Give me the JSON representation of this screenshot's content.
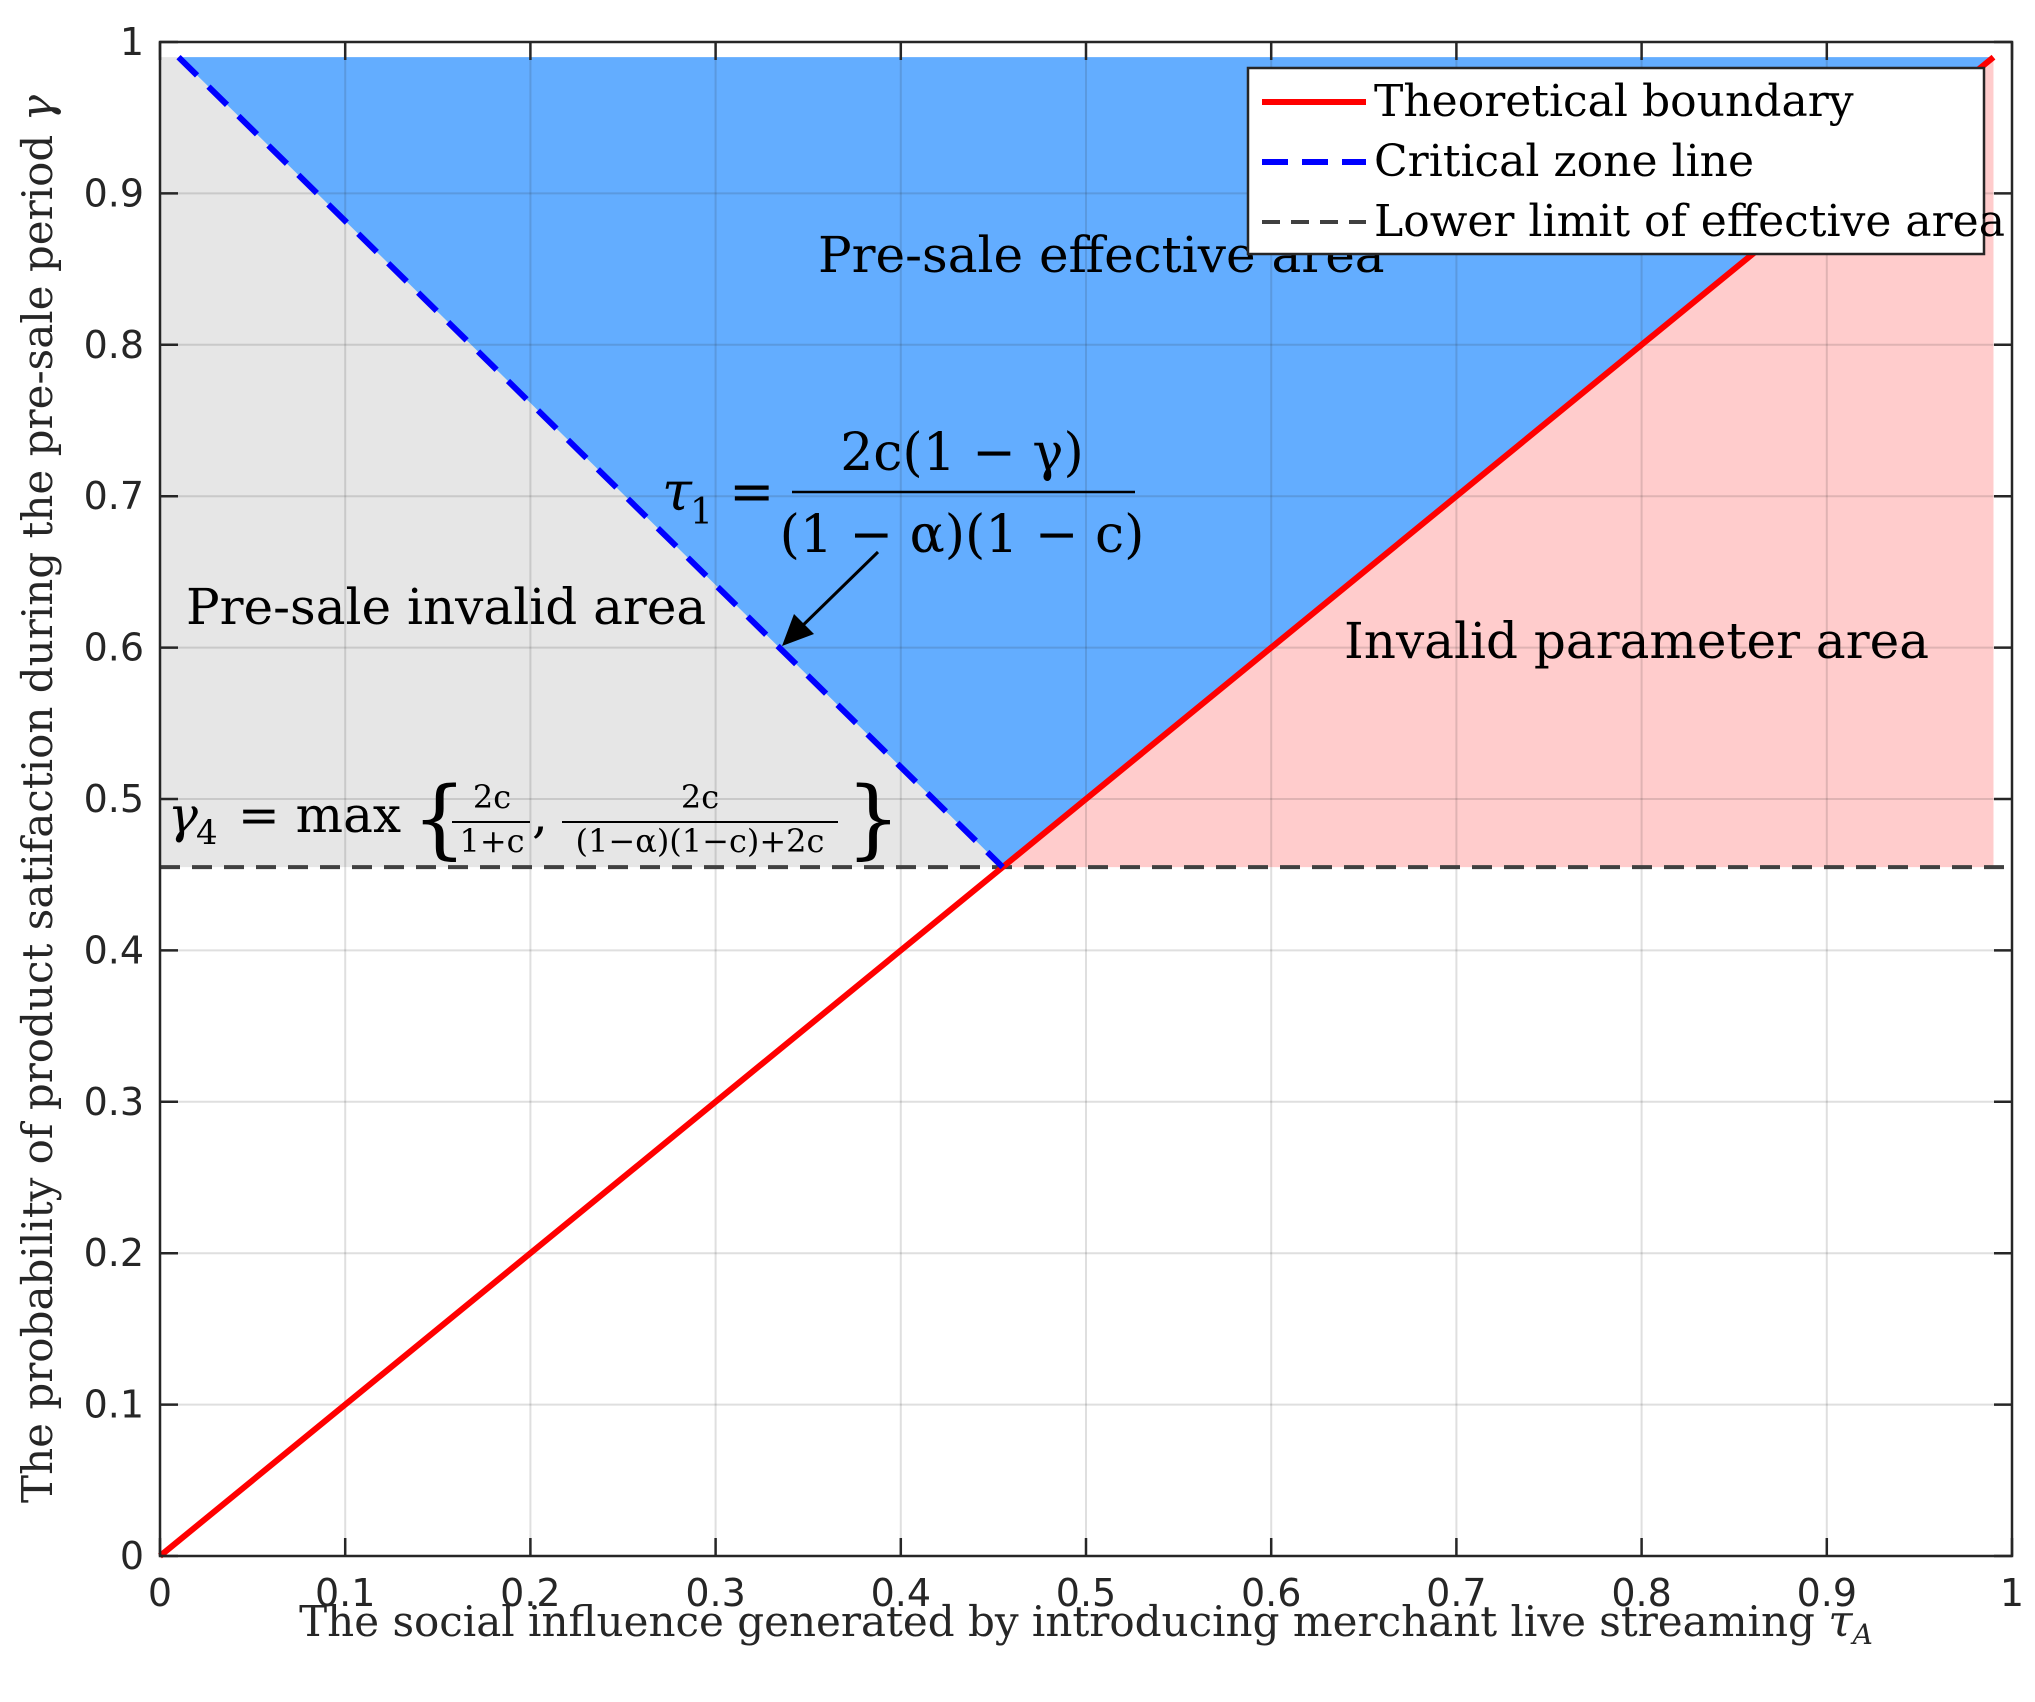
{
  "chart_data": {
    "type": "line",
    "title": "",
    "xlabel_main": "The social influence generated by introducing merchant live streaming ",
    "xlabel_symbol": "τ",
    "xlabel_subscript": "A",
    "ylabel_main": "The probability of product satifaction during the pre-sale period ",
    "ylabel_symbol": "γ",
    "xlim": [
      0,
      1
    ],
    "ylim": [
      0,
      1
    ],
    "grid": true,
    "x_ticks": [
      0,
      0.1,
      0.2,
      0.3,
      0.4,
      0.5,
      0.6,
      0.7,
      0.8,
      0.9,
      1
    ],
    "x_tick_labels": [
      "0",
      "0.1",
      "0.2",
      "0.3",
      "0.4",
      "0.5",
      "0.6",
      "0.7",
      "0.8",
      "0.9",
      "1"
    ],
    "y_ticks": [
      0,
      0.1,
      0.2,
      0.3,
      0.4,
      0.5,
      0.6,
      0.7,
      0.8,
      0.9,
      1
    ],
    "y_tick_labels": [
      "0",
      "0.1",
      "0.2",
      "0.3",
      "0.4",
      "0.5",
      "0.6",
      "0.7",
      "0.8",
      "0.9",
      "1"
    ],
    "series": [
      {
        "name": "Theoretical boundary",
        "color": "#ff0000",
        "style": "solid",
        "x": [
          0,
          0.99
        ],
        "y": [
          0,
          0.99
        ]
      },
      {
        "name": "Critical zone line",
        "color": "#0000ff",
        "style": "dashed",
        "x": [
          0.01,
          0.455
        ],
        "y": [
          0.99,
          0.455
        ]
      },
      {
        "name": "Lower limit of effective area",
        "color": "#404040",
        "style": "dashed",
        "x": [
          0,
          1
        ],
        "y": [
          0.455,
          0.455
        ]
      }
    ],
    "regions": [
      {
        "name": "Pre-sale invalid area",
        "color": "#e6e6e6",
        "points": [
          [
            0,
            0.99
          ],
          [
            0.01,
            0.99
          ],
          [
            0.455,
            0.455
          ],
          [
            0,
            0.455
          ]
        ]
      },
      {
        "name": "Pre-sale effective area",
        "color": "#63adff",
        "points": [
          [
            0.01,
            0.99
          ],
          [
            0.99,
            0.99
          ],
          [
            0.455,
            0.455
          ]
        ]
      },
      {
        "name": "Invalid parameter area",
        "color": "#ffcccc",
        "points": [
          [
            0.455,
            0.455
          ],
          [
            0.99,
            0.99
          ],
          [
            0.99,
            0.455
          ]
        ]
      }
    ],
    "region_labels": [
      "Pre-sale effective area",
      "Pre-sale invalid area",
      "Invalid parameter area"
    ],
    "annotations": {
      "tau1_lhs": "τ",
      "tau1_sub": "1",
      "tau1_eq": " = ",
      "tau1_num": "2c(1 − γ)",
      "tau1_den": "(1 − α)(1 − c)",
      "gamma4_lhs": "γ",
      "gamma4_sub": "4",
      "gamma4_eq": " = max",
      "gamma4_frac1_num": "2c",
      "gamma4_frac1_den": "1+c",
      "gamma4_comma": ",",
      "gamma4_frac2_num": "2c",
      "gamma4_frac2_den": "(1−α)(1−c)+2c"
    },
    "legend_position": "top-right"
  }
}
